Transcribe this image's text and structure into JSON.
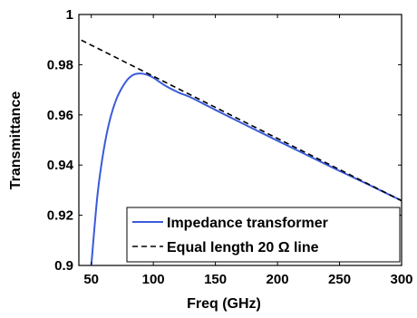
{
  "chart_data": {
    "type": "line",
    "xlabel": "Freq (GHz)",
    "ylabel": "Transmittance",
    "xlim": [
      40,
      300
    ],
    "ylim": [
      0.9,
      1.0
    ],
    "x_ticks": [
      50,
      100,
      150,
      200,
      250,
      300
    ],
    "y_ticks": [
      0.9,
      0.92,
      0.94,
      0.96,
      0.98,
      1
    ],
    "x_tick_labels": [
      "50",
      "100",
      "150",
      "200",
      "250",
      "300"
    ],
    "y_tick_labels": [
      "0.9",
      "0.92",
      "0.94",
      "0.96",
      "0.98",
      "1"
    ],
    "grid": false,
    "legend_position": "bottom-right",
    "series": [
      {
        "name": "Impedance transformer",
        "color": "#3a5bd9",
        "style": "solid",
        "x": [
          50,
          55,
          60,
          65,
          70,
          75,
          80,
          85,
          90,
          95,
          100,
          110,
          120,
          130,
          140,
          150,
          175,
          200,
          225,
          250,
          275,
          300
        ],
        "y": [
          0.9,
          0.928,
          0.946,
          0.958,
          0.966,
          0.971,
          0.9745,
          0.9762,
          0.9765,
          0.976,
          0.9748,
          0.9715,
          0.969,
          0.967,
          0.9645,
          0.962,
          0.9558,
          0.9497,
          0.9437,
          0.9377,
          0.9318,
          0.9258
        ]
      },
      {
        "name": "Equal length 20 Ω line",
        "color": "#000000",
        "style": "dashed",
        "x": [
          42,
          300
        ],
        "y": [
          0.9898,
          0.9258
        ]
      }
    ]
  }
}
